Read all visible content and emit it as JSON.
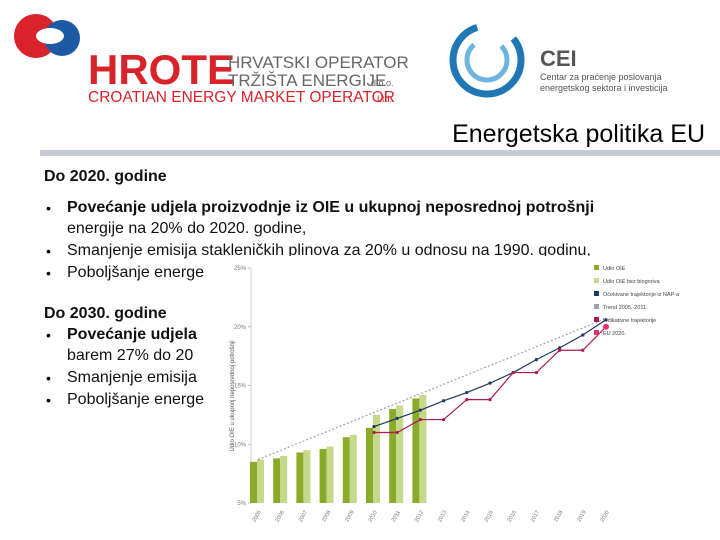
{
  "header": {
    "hrote": "HROTE",
    "line1": "HRVATSKI OPERATOR",
    "line2": "TRŽIŠTA ENERGIJE",
    "suffix": "d.o.o.",
    "english": "CROATIAN ENERGY MARKET OPERATOR",
    "english_suffix": "Ltd.",
    "cei": "CEI",
    "cei_line1": "Centar za praćenje poslovanja",
    "cei_line2": "energetskog sektora i investicija"
  },
  "title": "Energetska politika EU",
  "section1": {
    "heading": "Do 2020. godine",
    "bullets": [
      "Povećanje udjela proizvodnje iz OIE u ukupnoj neposrednoj potrošnji",
      "energije na 20% do 2020. godine,",
      "Smanjenje emisija stakleničkih plinova za 20% u odnosu na 1990. godinu,",
      "Poboljšanje energe"
    ]
  },
  "section2": {
    "heading": "Do 2030. godine",
    "bullets": [
      "Povećanje udjela",
      "barem 27% do 20",
      "Smanjenje emisija",
      "Poboljšanje energe"
    ]
  },
  "chart": {
    "type": "bar-line",
    "y_label": "Udio OIE u ukupnoj neposrednoj potrošnji",
    "categories": [
      "2005",
      "2006",
      "2007",
      "2008",
      "2009",
      "2010",
      "2011",
      "2012",
      "2013",
      "2014",
      "2015",
      "2016",
      "2017",
      "2018",
      "2019",
      "2020"
    ],
    "ylim": [
      5,
      25
    ],
    "yticks": [
      {
        "value": 5,
        "label": "5%"
      },
      {
        "value": 10,
        "label": "10%"
      },
      {
        "value": 15,
        "label": "15%"
      },
      {
        "value": 20,
        "label": "20%"
      },
      {
        "value": 25,
        "label": "25%"
      }
    ],
    "series": [
      {
        "name": "Udio OIE",
        "kind": "bar",
        "color": "#8aab2a",
        "values": [
          8.5,
          8.8,
          9.3,
          9.6,
          10.6,
          11.4,
          13,
          13.9,
          null,
          null,
          null,
          null,
          null,
          null,
          null,
          null
        ]
      },
      {
        "name": "Udio OIE bez biogoriva",
        "kind": "bar",
        "color": "#c5d98a",
        "values": [
          8.7,
          9,
          9.5,
          9.8,
          10.8,
          12.5,
          13.3,
          14.2,
          null,
          null,
          null,
          null,
          null,
          null,
          null,
          null
        ]
      },
      {
        "name": "Očekivane trajektorije iz NAP-a",
        "kind": "line",
        "color": "#1f3864",
        "values": [
          null,
          null,
          null,
          null,
          null,
          11.5,
          12.2,
          12.9,
          13.7,
          14.4,
          15.2,
          16.1,
          17.2,
          18.2,
          19.3,
          20.6
        ]
      },
      {
        "name": "Trend 2005.-2011.",
        "kind": "dash",
        "color": "#9aa3b0",
        "values": [
          8.7,
          null,
          null,
          null,
          null,
          null,
          null,
          null,
          null,
          null,
          null,
          null,
          null,
          null,
          null,
          20.7
        ]
      },
      {
        "name": "Indikativne trajektorije",
        "kind": "line",
        "color": "#b0184f",
        "values": [
          null,
          null,
          null,
          null,
          null,
          11,
          11,
          12.1,
          12.1,
          13.8,
          13.8,
          16.1,
          16.1,
          18,
          18,
          20
        ]
      },
      {
        "name": "EU 2020.",
        "kind": "point",
        "color": "#e03070",
        "values": [
          null,
          null,
          null,
          null,
          null,
          null,
          null,
          null,
          null,
          null,
          null,
          null,
          null,
          null,
          null,
          20
        ]
      }
    ]
  }
}
